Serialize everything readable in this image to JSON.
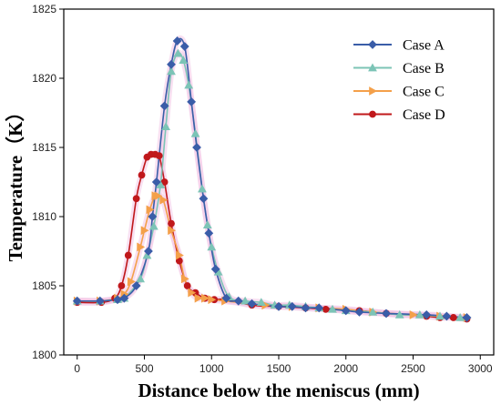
{
  "chart_data": {
    "type": "line",
    "xlabel": "Distance below the meniscus (mm)",
    "ylabel": "Temperature（K）",
    "xlim": [
      -100,
      3100
    ],
    "ylim": [
      1800,
      1825
    ],
    "xticks": [
      0,
      500,
      1000,
      1500,
      2000,
      2500,
      3000
    ],
    "yticks": [
      1800,
      1805,
      1810,
      1815,
      1820,
      1825
    ],
    "legend_position": "top-right",
    "grid": false,
    "series": [
      {
        "name": "Case A",
        "color": "#3a5da8",
        "marker": "diamond",
        "x": [
          0,
          170,
          300,
          350,
          440,
          530,
          560,
          590,
          650,
          700,
          745,
          800,
          850,
          890,
          940,
          980,
          1030,
          1110,
          1200,
          1300,
          1500,
          1600,
          1700,
          1800,
          2000,
          2100,
          2300,
          2600,
          2750,
          2900
        ],
        "y": [
          1803.9,
          1803.9,
          1804.0,
          1804.1,
          1805.0,
          1807.5,
          1810.0,
          1812.5,
          1818.0,
          1821.0,
          1822.7,
          1822.3,
          1818.3,
          1815.0,
          1811.3,
          1808.8,
          1806.2,
          1804.1,
          1803.9,
          1803.7,
          1803.5,
          1803.5,
          1803.4,
          1803.4,
          1803.2,
          1803.1,
          1803.0,
          1802.9,
          1802.8,
          1802.7
        ]
      },
      {
        "name": "Case B",
        "color": "#7cc4b6",
        "marker": "triangle-up",
        "x": [
          0,
          170,
          300,
          350,
          470,
          520,
          570,
          620,
          660,
          700,
          750,
          790,
          830,
          880,
          930,
          970,
          1000,
          1050,
          1130,
          1250,
          1370,
          1470,
          1580,
          1700,
          1800,
          1900,
          2000,
          2200,
          2400,
          2550,
          2700,
          2850
        ],
        "y": [
          1803.9,
          1803.9,
          1804.0,
          1804.1,
          1805.5,
          1807.2,
          1809.3,
          1812.3,
          1816.5,
          1820.5,
          1821.8,
          1821.3,
          1819.5,
          1816.0,
          1812.0,
          1809.4,
          1807.8,
          1806.0,
          1804.2,
          1803.9,
          1803.8,
          1803.6,
          1803.6,
          1803.5,
          1803.4,
          1803.3,
          1803.2,
          1803.1,
          1802.9,
          1802.9,
          1802.8,
          1802.7
        ]
      },
      {
        "name": "Case C",
        "color": "#f4a04a",
        "marker": "triangle-right",
        "x": [
          0,
          170,
          300,
          350,
          400,
          470,
          500,
          540,
          580,
          600,
          640,
          700,
          760,
          800,
          850,
          900,
          950,
          1000,
          1100,
          1400,
          1600,
          1800,
          2000,
          2200,
          2500,
          2700,
          2900
        ],
        "y": [
          1803.9,
          1803.9,
          1804.1,
          1804.4,
          1805.3,
          1807.8,
          1809.0,
          1810.5,
          1811.5,
          1811.5,
          1811.2,
          1809.0,
          1807.2,
          1805.5,
          1804.5,
          1804.1,
          1804.1,
          1804.0,
          1803.9,
          1803.6,
          1803.5,
          1803.4,
          1803.3,
          1803.1,
          1802.9,
          1802.8,
          1802.7
        ]
      },
      {
        "name": "Case D",
        "color": "#c0181b",
        "marker": "circle",
        "x": [
          0,
          180,
          280,
          330,
          380,
          440,
          480,
          520,
          550,
          580,
          610,
          650,
          700,
          760,
          820,
          880,
          950,
          1020,
          1100,
          1300,
          1500,
          1700,
          1850,
          2100,
          2300,
          2600,
          2700,
          2800,
          2900
        ],
        "y": [
          1803.8,
          1803.8,
          1804.1,
          1805.0,
          1807.2,
          1811.3,
          1813.0,
          1814.3,
          1814.5,
          1814.5,
          1814.4,
          1812.5,
          1809.5,
          1806.8,
          1805.0,
          1804.5,
          1804.1,
          1804.0,
          1804.0,
          1803.6,
          1803.5,
          1803.4,
          1803.3,
          1803.2,
          1803.0,
          1802.8,
          1802.7,
          1802.7,
          1802.6
        ]
      }
    ]
  }
}
